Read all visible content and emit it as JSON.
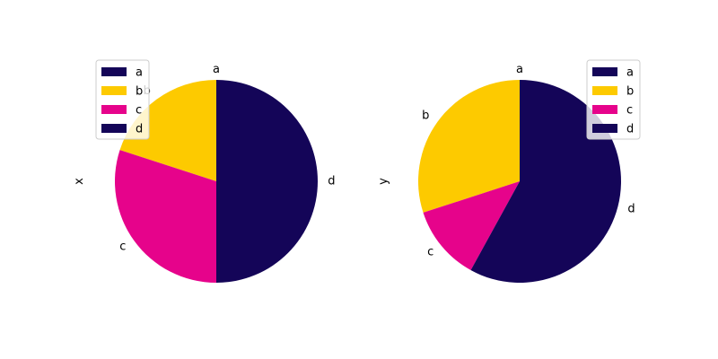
{
  "chart_data": [
    {
      "type": "pie",
      "ylabel": "x",
      "categories": [
        "a",
        "b",
        "c",
        "d"
      ],
      "values": [
        0,
        20,
        30,
        50
      ],
      "slice_colors": [
        "#140558",
        "#fdca00",
        "#e6038b",
        "#140558"
      ],
      "legend": {
        "entries": [
          "a",
          "b",
          "c",
          "d"
        ],
        "placement": "upper-left"
      },
      "start_angle_deg": 90,
      "direction": "counterclockwise"
    },
    {
      "type": "pie",
      "ylabel": "y",
      "categories": [
        "a",
        "b",
        "c",
        "d"
      ],
      "values": [
        0,
        30,
        12,
        58
      ],
      "slice_colors": [
        "#140558",
        "#fdca00",
        "#e6038b",
        "#140558"
      ],
      "legend": {
        "entries": [
          "a",
          "b",
          "c",
          "d"
        ],
        "placement": "upper-right"
      },
      "start_angle_deg": 90,
      "direction": "counterclockwise"
    }
  ]
}
